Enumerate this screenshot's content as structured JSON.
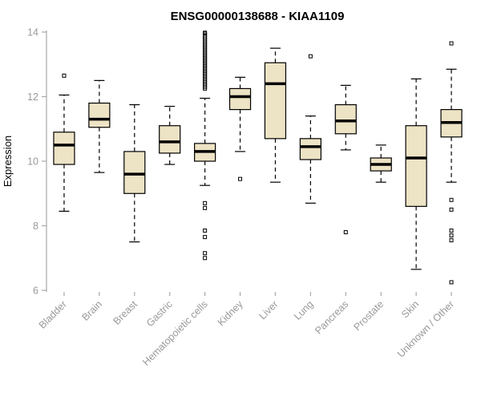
{
  "colors": {
    "box_fill": "#EDE3C5",
    "box_stroke": "#000000",
    "median": "#000000",
    "whisker": "#000000",
    "axis": "#A8A8A8",
    "tick_text": "#999999",
    "title_text": "#111111",
    "background": "#FFFFFF"
  },
  "chart_data": {
    "type": "boxplot",
    "title": "ENSG00000138688 - KIAA1109",
    "ylabel": "Expression",
    "ylim": [
      6,
      14
    ],
    "yticks": [
      6,
      8,
      10,
      12,
      14
    ],
    "grid": false,
    "legend": "none",
    "categories": [
      "Bladder",
      "Brain",
      "Breast",
      "Gastric",
      "Hematopoietic cells",
      "Kidney",
      "Liver",
      "Lung",
      "Pancreas",
      "Prostate",
      "Skin",
      "Unknown / Other"
    ],
    "boxes": [
      {
        "low": 8.45,
        "q1": 9.9,
        "median": 10.5,
        "q3": 10.9,
        "high": 12.05,
        "outliers": [
          12.65
        ]
      },
      {
        "low": 9.65,
        "q1": 11.05,
        "median": 11.3,
        "q3": 11.8,
        "high": 12.5,
        "outliers": []
      },
      {
        "low": 7.5,
        "q1": 9.0,
        "median": 9.6,
        "q3": 10.3,
        "high": 11.75,
        "outliers": []
      },
      {
        "low": 9.9,
        "q1": 10.25,
        "median": 10.6,
        "q3": 11.1,
        "high": 11.7,
        "outliers": []
      },
      {
        "low": 9.25,
        "q1": 10.0,
        "median": 10.3,
        "q3": 10.55,
        "high": 11.95,
        "outliers": [
          13.98,
          13.95,
          13.9,
          13.85,
          13.8,
          13.75,
          13.7,
          13.65,
          13.6,
          13.55,
          13.5,
          13.45,
          13.4,
          13.35,
          13.3,
          13.25,
          13.2,
          13.15,
          13.1,
          13.05,
          13.0,
          12.95,
          12.9,
          12.85,
          12.8,
          12.75,
          12.7,
          12.65,
          12.6,
          12.55,
          12.5,
          12.45,
          12.4,
          12.35,
          12.3,
          12.25,
          8.7,
          8.55,
          7.85,
          7.65,
          7.15,
          7.0
        ]
      },
      {
        "low": 10.3,
        "q1": 11.6,
        "median": 12.0,
        "q3": 12.25,
        "high": 12.6,
        "outliers": [
          9.45
        ]
      },
      {
        "low": 9.35,
        "q1": 10.7,
        "median": 12.4,
        "q3": 13.05,
        "high": 13.5,
        "outliers": []
      },
      {
        "low": 8.7,
        "q1": 10.05,
        "median": 10.45,
        "q3": 10.7,
        "high": 11.4,
        "outliers": [
          13.25
        ]
      },
      {
        "low": 10.35,
        "q1": 10.85,
        "median": 11.25,
        "q3": 11.75,
        "high": 12.35,
        "outliers": [
          7.8
        ]
      },
      {
        "low": 9.35,
        "q1": 9.7,
        "median": 9.9,
        "q3": 10.1,
        "high": 10.5,
        "outliers": []
      },
      {
        "low": 6.65,
        "q1": 8.6,
        "median": 10.1,
        "q3": 11.1,
        "high": 12.55,
        "outliers": []
      },
      {
        "low": 9.35,
        "q1": 10.75,
        "median": 11.2,
        "q3": 11.6,
        "high": 12.85,
        "outliers": [
          13.65,
          8.8,
          8.5,
          7.85,
          7.7,
          7.55,
          6.25
        ]
      }
    ]
  }
}
